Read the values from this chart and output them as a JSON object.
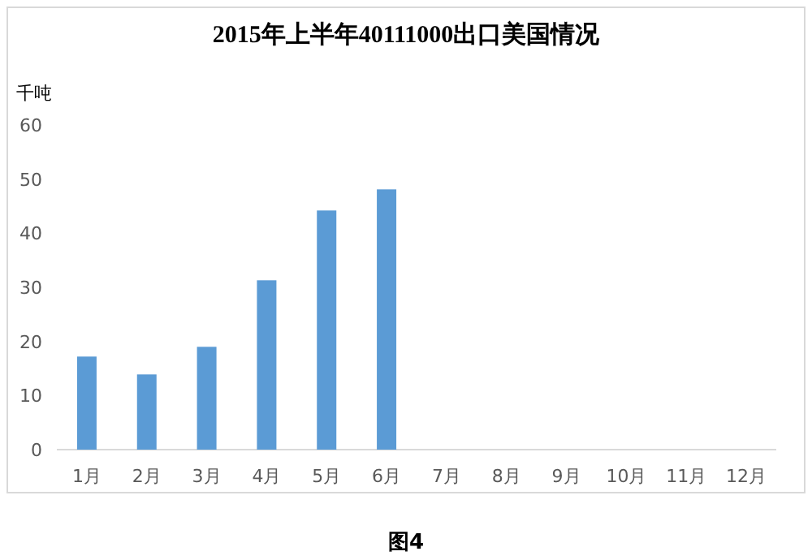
{
  "chart_data": {
    "type": "bar",
    "title": "2015年上半年40111000出口美国情况",
    "ylabel": "千吨",
    "categories": [
      "1月",
      "2月",
      "3月",
      "4月",
      "5月",
      "6月",
      "7月",
      "8月",
      "9月",
      "10月",
      "11月",
      "12月"
    ],
    "values": [
      17.2,
      13.9,
      19.0,
      31.3,
      44.2,
      48.1,
      null,
      null,
      null,
      null,
      null,
      null
    ],
    "color": "#5b9bd5",
    "ylim": [
      0,
      60
    ],
    "yticks": [
      0,
      10,
      20,
      30,
      40,
      50,
      60
    ],
    "annotations": [
      "图4"
    ]
  }
}
